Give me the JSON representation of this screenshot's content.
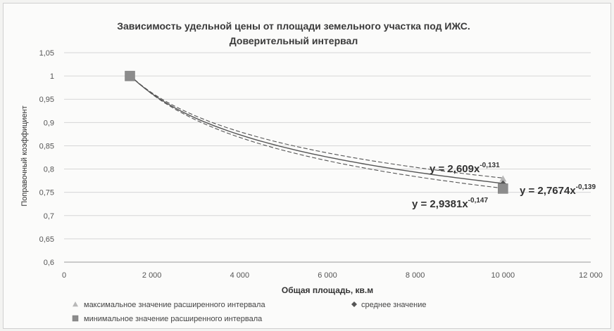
{
  "chart_data": {
    "type": "scatter",
    "title": "Зависимость удельной цены от площади земельного участка под ИЖС.",
    "subtitle": "Доверительный интервал",
    "xlabel": "Общая площадь, кв.м",
    "ylabel": "Поправочный коэффициент",
    "xlim": [
      0,
      12000
    ],
    "ylim": [
      0.6,
      1.05
    ],
    "x_ticks": [
      "0",
      "2 000",
      "4 000",
      "6 000",
      "8 000",
      "10 000",
      "12 000"
    ],
    "y_ticks": [
      "0,6",
      "0,65",
      "0,7",
      "0,75",
      "0,8",
      "0,85",
      "0,9",
      "0,95",
      "1",
      "1,05"
    ],
    "grid": true,
    "legend_position": "bottom",
    "series": [
      {
        "name": "максимальное значение расширенного интервала",
        "marker": "triangle",
        "color": "#b8b8b8",
        "points": [
          [
            1500,
            1.0
          ],
          [
            10000,
            0.779
          ]
        ],
        "trend": {
          "a": 2.609,
          "b": -0.131,
          "style": "dashed"
        },
        "equation": {
          "base": "y = 2,609x",
          "exp": "-0,131"
        }
      },
      {
        "name": "среднее значение",
        "marker": "diamond",
        "color": "#555555",
        "points": [
          [
            1500,
            1.0
          ],
          [
            10000,
            0.768
          ]
        ],
        "trend": {
          "a": 2.7674,
          "b": -0.139,
          "style": "solid"
        },
        "equation": {
          "base": "y = 2,7674x",
          "exp": "-0,139"
        }
      },
      {
        "name": "минимальное значение расширенного интервала",
        "marker": "square",
        "color": "#8c8c8c",
        "points": [
          [
            1500,
            1.0
          ],
          [
            10000,
            0.758
          ]
        ],
        "trend": {
          "a": 2.9381,
          "b": -0.147,
          "style": "dashed"
        },
        "equation": {
          "base": "y = 2,9381x",
          "exp": "-0,147"
        }
      }
    ]
  }
}
